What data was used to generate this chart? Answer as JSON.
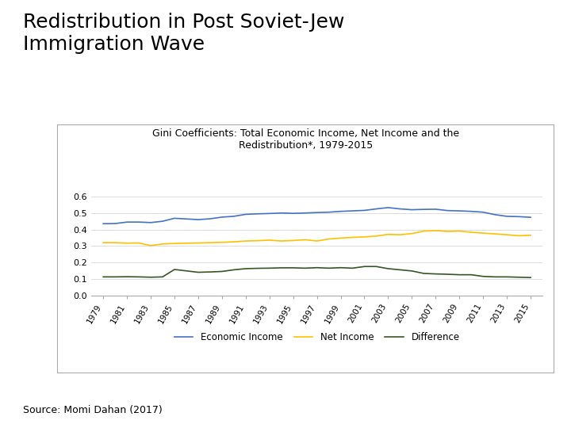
{
  "title_main": "Redistribution in Post Soviet-Jew\nImmigration Wave",
  "chart_title": "Gini Coefficients: Total Economic Income, Net Income and the\nRedistribution*, 1979-2015",
  "source": "Source: Momi Dahan (2017)",
  "years": [
    1979,
    1980,
    1981,
    1982,
    1983,
    1984,
    1985,
    1987,
    1988,
    1989,
    1990,
    1991,
    1992,
    1993,
    1994,
    1995,
    1996,
    1997,
    1998,
    1999,
    2000,
    2001,
    2002,
    2003,
    2004,
    2005,
    2006,
    2007,
    2008,
    2009,
    2010,
    2011,
    2012,
    2013,
    2014,
    2015
  ],
  "economic_income": [
    0.435,
    0.436,
    0.445,
    0.445,
    0.442,
    0.45,
    0.468,
    0.46,
    0.465,
    0.475,
    0.48,
    0.492,
    0.495,
    0.497,
    0.5,
    0.498,
    0.5,
    0.503,
    0.505,
    0.51,
    0.513,
    0.516,
    0.525,
    0.533,
    0.525,
    0.52,
    0.522,
    0.523,
    0.515,
    0.513,
    0.51,
    0.505,
    0.49,
    0.48,
    0.478,
    0.474
  ],
  "net_income": [
    0.32,
    0.32,
    0.317,
    0.318,
    0.302,
    0.312,
    0.315,
    0.318,
    0.32,
    0.322,
    0.325,
    0.33,
    0.332,
    0.335,
    0.33,
    0.333,
    0.338,
    0.33,
    0.342,
    0.348,
    0.352,
    0.355,
    0.36,
    0.37,
    0.368,
    0.375,
    0.39,
    0.393,
    0.388,
    0.39,
    0.383,
    0.378,
    0.373,
    0.368,
    0.362,
    0.365
  ],
  "difference": [
    0.112,
    0.112,
    0.113,
    0.112,
    0.11,
    0.112,
    0.157,
    0.14,
    0.142,
    0.145,
    0.155,
    0.162,
    0.164,
    0.165,
    0.167,
    0.167,
    0.165,
    0.168,
    0.165,
    0.168,
    0.165,
    0.175,
    0.175,
    0.162,
    0.155,
    0.148,
    0.133,
    0.13,
    0.128,
    0.125,
    0.125,
    0.115,
    0.112,
    0.112,
    0.11,
    0.108
  ],
  "economic_color": "#4472C4",
  "net_income_color": "#FFC000",
  "difference_color": "#375623",
  "ylim": [
    0,
    0.65
  ],
  "yticks": [
    0,
    0.1,
    0.2,
    0.3,
    0.4,
    0.5,
    0.6
  ],
  "legend_labels": [
    "Economic Income",
    "Net Income",
    "Difference"
  ],
  "background_color": "#FFFFFF",
  "title_fontsize": 18,
  "chart_title_fontsize": 9,
  "source_fontsize": 9
}
